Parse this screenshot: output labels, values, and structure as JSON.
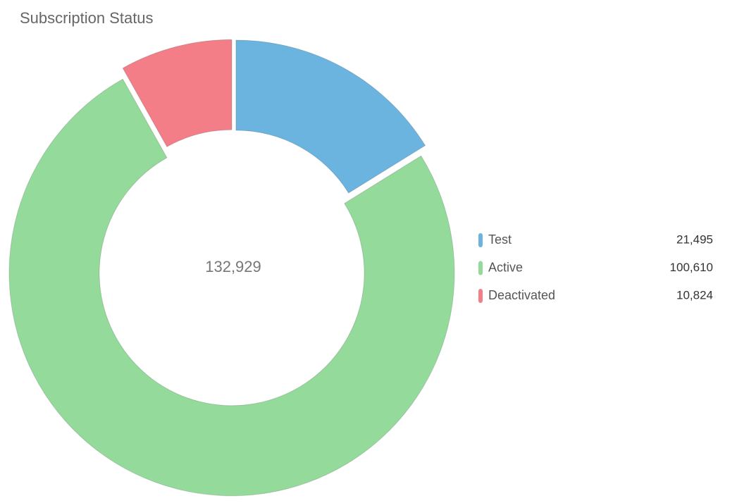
{
  "chart_data": {
    "type": "donut",
    "title": "Subscription Status",
    "center_text": "132,929",
    "categories": [
      "Test",
      "Active",
      "Deactivated"
    ],
    "values": [
      21495,
      100610,
      10824
    ],
    "value_labels": [
      "21,495",
      "100,610",
      "10,824"
    ],
    "colors": [
      "#6cb4e0",
      "#94da9b",
      "#f47e88"
    ]
  }
}
